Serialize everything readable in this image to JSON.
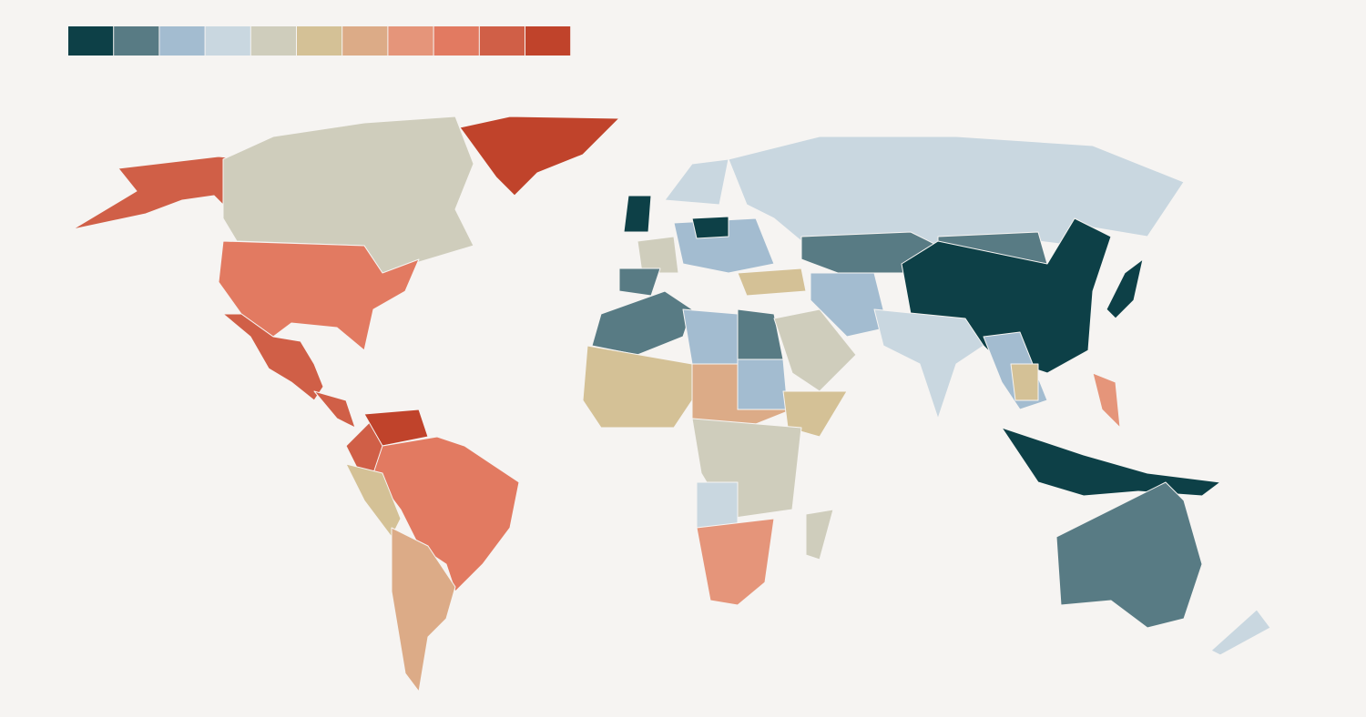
{
  "legend": {
    "colors": [
      "#0d4047",
      "#587b84",
      "#a3bcd0",
      "#c9d7e0",
      "#cfcdbc",
      "#d4c196",
      "#dcab87",
      "#e5957a",
      "#e27a61",
      "#d05f47",
      "#c0432b"
    ]
  }
}
